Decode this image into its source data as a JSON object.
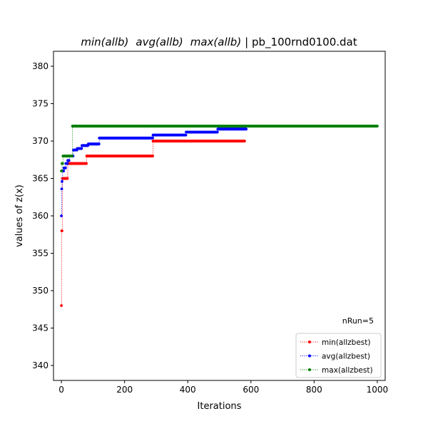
{
  "chart_data": {
    "type": "line",
    "title_parts": [
      "min(allb)",
      "avg(allb)",
      "max(allb)",
      "| pb_100rnd0100.dat"
    ],
    "xlabel": "Iterations",
    "ylabel": "values of z(x)",
    "xlim": [
      -25,
      1025
    ],
    "ylim": [
      338,
      382
    ],
    "xticks": [
      0,
      200,
      400,
      600,
      800,
      1000
    ],
    "yticks": [
      340,
      345,
      350,
      355,
      360,
      365,
      370,
      375,
      380
    ],
    "annotation": "nRun=5",
    "legend_position": "lower right",
    "grid": false,
    "series": [
      {
        "name": "min(allzbest)",
        "color": "#ff0000",
        "steps": [
          [
            0,
            348
          ],
          [
            1,
            358
          ],
          [
            3,
            365
          ],
          [
            20,
            367
          ],
          [
            80,
            368
          ],
          [
            290,
            370
          ],
          [
            580,
            370
          ]
        ]
      },
      {
        "name": "avg(allzbest)",
        "color": "#0000ff",
        "steps": [
          [
            0,
            360
          ],
          [
            1,
            363.6
          ],
          [
            2,
            364.6
          ],
          [
            3,
            366
          ],
          [
            8,
            366.4
          ],
          [
            14,
            367
          ],
          [
            20,
            367.4
          ],
          [
            25,
            368
          ],
          [
            38,
            368.8
          ],
          [
            50,
            369
          ],
          [
            65,
            369.4
          ],
          [
            85,
            369.6
          ],
          [
            120,
            370.4
          ],
          [
            290,
            370.8
          ],
          [
            395,
            371.2
          ],
          [
            495,
            371.6
          ],
          [
            585,
            371.6
          ]
        ]
      },
      {
        "name": "max(allzbest)",
        "color": "#008000",
        "steps": [
          [
            0,
            366
          ],
          [
            2,
            367
          ],
          [
            5,
            368
          ],
          [
            35,
            372
          ],
          [
            1000,
            372
          ]
        ]
      }
    ]
  }
}
